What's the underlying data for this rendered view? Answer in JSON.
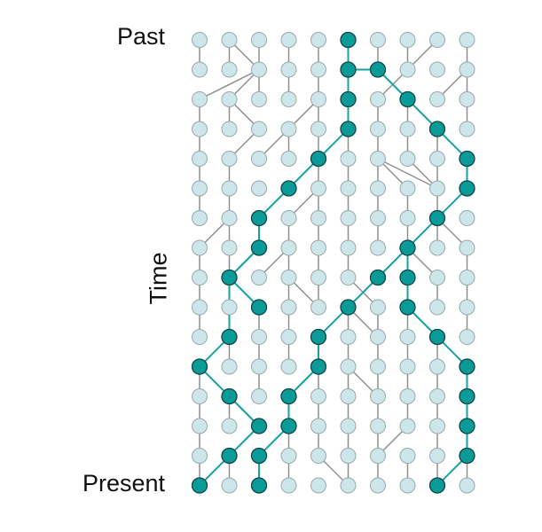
{
  "labels": {
    "past": "Past",
    "time": "Time",
    "present": "Present"
  },
  "colors": {
    "node_fill": "#cce6ea",
    "node_stroke": "#9aa9ad",
    "highlight_fill": "#0a9a98",
    "highlight_stroke": "#104747",
    "edge": "#8f8f8f",
    "highlight_edge": "#16a3a0"
  },
  "grid": {
    "columns": 10,
    "rows": 16
  },
  "highlighted_nodes": [
    [
      5,
      0
    ],
    [
      5,
      1
    ],
    [
      6,
      1
    ],
    [
      5,
      2
    ],
    [
      7,
      2
    ],
    [
      5,
      3
    ],
    [
      8,
      3
    ],
    [
      4,
      4
    ],
    [
      9,
      4
    ],
    [
      3,
      5
    ],
    [
      9,
      5
    ],
    [
      2,
      6
    ],
    [
      8,
      6
    ],
    [
      2,
      7
    ],
    [
      7,
      7
    ],
    [
      1,
      8
    ],
    [
      6,
      8
    ],
    [
      7,
      8
    ],
    [
      2,
      9
    ],
    [
      5,
      9
    ],
    [
      7,
      9
    ],
    [
      1,
      10
    ],
    [
      4,
      10
    ],
    [
      8,
      10
    ],
    [
      0,
      11
    ],
    [
      4,
      11
    ],
    [
      9,
      11
    ],
    [
      1,
      12
    ],
    [
      3,
      12
    ],
    [
      9,
      12
    ],
    [
      2,
      13
    ],
    [
      3,
      13
    ],
    [
      9,
      13
    ],
    [
      1,
      14
    ],
    [
      2,
      14
    ],
    [
      9,
      14
    ],
    [
      0,
      15
    ],
    [
      2,
      15
    ],
    [
      8,
      15
    ]
  ],
  "gray_edges": [
    [
      0,
      0,
      0,
      1
    ],
    [
      1,
      0,
      1,
      1
    ],
    [
      1,
      0,
      2,
      1
    ],
    [
      2,
      0,
      2,
      1
    ],
    [
      3,
      0,
      3,
      1
    ],
    [
      4,
      0,
      4,
      1
    ],
    [
      6,
      0,
      6,
      1
    ],
    [
      7,
      0,
      7,
      1
    ],
    [
      8,
      0,
      7,
      1
    ],
    [
      9,
      0,
      9,
      1
    ],
    [
      2,
      1,
      0,
      2
    ],
    [
      2,
      1,
      1,
      2
    ],
    [
      2,
      1,
      2,
      2
    ],
    [
      3,
      1,
      3,
      2
    ],
    [
      4,
      1,
      4,
      2
    ],
    [
      7,
      1,
      6,
      2
    ],
    [
      9,
      1,
      8,
      2
    ],
    [
      9,
      1,
      9,
      2
    ],
    [
      0,
      2,
      0,
      3
    ],
    [
      1,
      2,
      1,
      3
    ],
    [
      1,
      2,
      2,
      3
    ],
    [
      4,
      2,
      3,
      3
    ],
    [
      4,
      2,
      4,
      3
    ],
    [
      6,
      2,
      6,
      3
    ],
    [
      7,
      2,
      7,
      3
    ],
    [
      9,
      2,
      9,
      3
    ],
    [
      0,
      3,
      0,
      4
    ],
    [
      2,
      3,
      1,
      4
    ],
    [
      3,
      3,
      2,
      4
    ],
    [
      3,
      3,
      3,
      4
    ],
    [
      4,
      3,
      4,
      4
    ],
    [
      5,
      3,
      5,
      4
    ],
    [
      6,
      3,
      6,
      4
    ],
    [
      7,
      3,
      7,
      4
    ],
    [
      8,
      3,
      8,
      4
    ],
    [
      0,
      4,
      0,
      5
    ],
    [
      1,
      4,
      1,
      5
    ],
    [
      4,
      4,
      4,
      5
    ],
    [
      5,
      4,
      5,
      5
    ],
    [
      6,
      4,
      6,
      5
    ],
    [
      6,
      4,
      7,
      5
    ],
    [
      6,
      4,
      8,
      5
    ],
    [
      7,
      4,
      8,
      5
    ],
    [
      8,
      4,
      8,
      5
    ],
    [
      0,
      5,
      0,
      6
    ],
    [
      1,
      5,
      1,
      6
    ],
    [
      4,
      5,
      3,
      6
    ],
    [
      4,
      5,
      4,
      6
    ],
    [
      5,
      5,
      5,
      6
    ],
    [
      6,
      5,
      6,
      6
    ],
    [
      7,
      5,
      7,
      6
    ],
    [
      8,
      5,
      8,
      6
    ],
    [
      1,
      6,
      0,
      7
    ],
    [
      1,
      6,
      1,
      7
    ],
    [
      3,
      6,
      3,
      7
    ],
    [
      4,
      6,
      4,
      7
    ],
    [
      5,
      6,
      5,
      7
    ],
    [
      6,
      6,
      6,
      7
    ],
    [
      7,
      6,
      7,
      7
    ],
    [
      8,
      6,
      8,
      7
    ],
    [
      8,
      6,
      9,
      7
    ],
    [
      0,
      7,
      0,
      8
    ],
    [
      1,
      7,
      1,
      8
    ],
    [
      3,
      7,
      2,
      8
    ],
    [
      3,
      7,
      3,
      8
    ],
    [
      4,
      7,
      4,
      8
    ],
    [
      5,
      7,
      5,
      8
    ],
    [
      7,
      7,
      8,
      8
    ],
    [
      9,
      7,
      9,
      8
    ],
    [
      0,
      8,
      0,
      9
    ],
    [
      1,
      8,
      1,
      9
    ],
    [
      3,
      8,
      3,
      9
    ],
    [
      3,
      8,
      4,
      9
    ],
    [
      4,
      8,
      4,
      9
    ],
    [
      5,
      8,
      6,
      9
    ],
    [
      8,
      8,
      8,
      9
    ],
    [
      9,
      8,
      9,
      9
    ],
    [
      0,
      9,
      0,
      10
    ],
    [
      2,
      9,
      2,
      10
    ],
    [
      3,
      9,
      3,
      10
    ],
    [
      5,
      9,
      5,
      10
    ],
    [
      5,
      9,
      6,
      10
    ],
    [
      6,
      9,
      6,
      10
    ],
    [
      7,
      9,
      7,
      10
    ],
    [
      9,
      9,
      9,
      10
    ],
    [
      1,
      10,
      1,
      11
    ],
    [
      2,
      10,
      2,
      11
    ],
    [
      3,
      10,
      3,
      11
    ],
    [
      5,
      10,
      5,
      11
    ],
    [
      6,
      10,
      6,
      11
    ],
    [
      7,
      10,
      7,
      11
    ],
    [
      8,
      10,
      8,
      11
    ],
    [
      0,
      11,
      0,
      12
    ],
    [
      2,
      11,
      2,
      12
    ],
    [
      4,
      11,
      4,
      12
    ],
    [
      5,
      11,
      5,
      12
    ],
    [
      5,
      11,
      6,
      12
    ],
    [
      6,
      11,
      6,
      12
    ],
    [
      7,
      11,
      7,
      12
    ],
    [
      8,
      11,
      8,
      12
    ],
    [
      0,
      12,
      0,
      13
    ],
    [
      1,
      12,
      1,
      13
    ],
    [
      4,
      12,
      4,
      13
    ],
    [
      5,
      12,
      5,
      13
    ],
    [
      6,
      12,
      6,
      13
    ],
    [
      7,
      12,
      7,
      13
    ],
    [
      8,
      12,
      8,
      13
    ],
    [
      0,
      13,
      0,
      14
    ],
    [
      3,
      13,
      3,
      14
    ],
    [
      4,
      13,
      4,
      14
    ],
    [
      5,
      13,
      5,
      14
    ],
    [
      6,
      13,
      6,
      14
    ],
    [
      7,
      13,
      6,
      14
    ],
    [
      8,
      13,
      8,
      14
    ],
    [
      0,
      14,
      0,
      15
    ],
    [
      1,
      14,
      1,
      15
    ],
    [
      3,
      14,
      3,
      15
    ],
    [
      4,
      14,
      5,
      15
    ],
    [
      5,
      14,
      5,
      15
    ],
    [
      6,
      14,
      6,
      15
    ],
    [
      7,
      14,
      7,
      15
    ],
    [
      8,
      14,
      8,
      15
    ],
    [
      9,
      14,
      9,
      15
    ]
  ],
  "highlight_edges": [
    [
      5,
      0,
      5,
      1
    ],
    [
      5,
      1,
      5,
      2
    ],
    [
      5,
      1,
      6,
      1
    ],
    [
      6,
      1,
      7,
      2
    ],
    [
      7,
      2,
      8,
      3
    ],
    [
      8,
      3,
      9,
      4
    ],
    [
      9,
      4,
      9,
      5
    ],
    [
      9,
      5,
      8,
      6
    ],
    [
      8,
      6,
      7,
      7
    ],
    [
      7,
      7,
      6,
      8
    ],
    [
      7,
      7,
      7,
      8
    ],
    [
      7,
      8,
      7,
      9
    ],
    [
      6,
      8,
      5,
      9
    ],
    [
      7,
      9,
      8,
      10
    ],
    [
      8,
      10,
      9,
      11
    ],
    [
      9,
      11,
      9,
      12
    ],
    [
      9,
      12,
      9,
      13
    ],
    [
      9,
      13,
      9,
      14
    ],
    [
      9,
      14,
      8,
      15
    ],
    [
      5,
      2,
      5,
      3
    ],
    [
      5,
      3,
      4,
      4
    ],
    [
      4,
      4,
      3,
      5
    ],
    [
      3,
      5,
      2,
      6
    ],
    [
      2,
      6,
      2,
      7
    ],
    [
      2,
      7,
      1,
      8
    ],
    [
      1,
      8,
      2,
      9
    ],
    [
      1,
      8,
      1,
      10
    ],
    [
      1,
      10,
      0,
      11
    ],
    [
      5,
      9,
      4,
      10
    ],
    [
      4,
      10,
      4,
      11
    ],
    [
      4,
      11,
      3,
      12
    ],
    [
      3,
      12,
      3,
      13
    ],
    [
      3,
      13,
      2,
      14
    ],
    [
      2,
      14,
      2,
      15
    ],
    [
      0,
      11,
      1,
      12
    ],
    [
      1,
      12,
      2,
      13
    ],
    [
      2,
      13,
      1,
      14
    ],
    [
      1,
      14,
      0,
      15
    ]
  ]
}
